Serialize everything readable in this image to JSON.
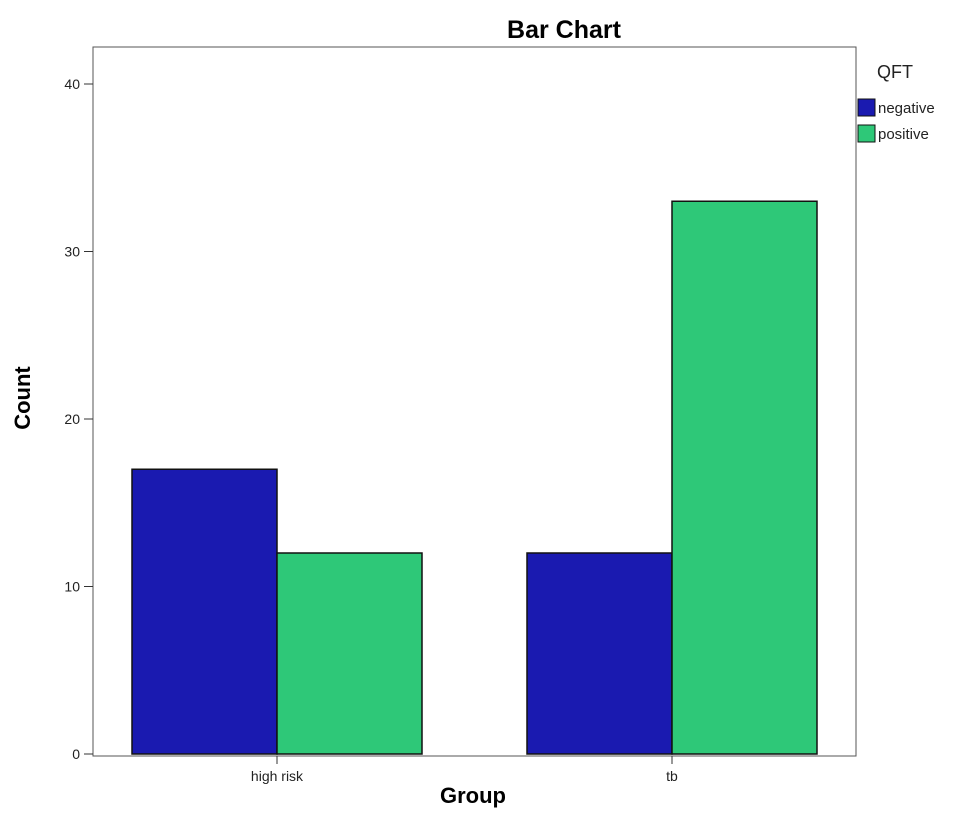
{
  "chart_data": {
    "type": "bar",
    "title": "Bar Chart",
    "xlabel": "Group",
    "ylabel": "Count",
    "categories": [
      "high risk",
      "tb"
    ],
    "series": [
      {
        "name": "negative",
        "values": [
          17,
          12
        ],
        "color": "#1a1ab0"
      },
      {
        "name": "positive",
        "values": [
          12,
          33
        ],
        "color": "#2ec878"
      }
    ],
    "ylim": [
      0,
      40
    ],
    "yticks": [
      "0",
      "10",
      "20",
      "30",
      "40"
    ],
    "legend": {
      "title": "QFT",
      "position": "right"
    },
    "grid": false
  }
}
